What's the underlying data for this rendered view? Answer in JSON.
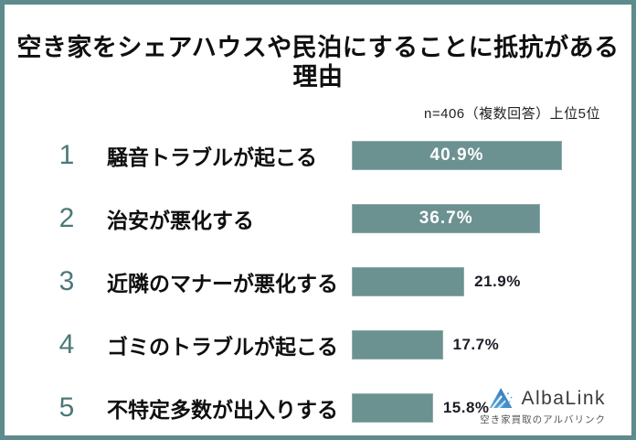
{
  "frame": {
    "border_color": "#5e8c8c",
    "background": "#ffffff"
  },
  "header": {
    "title": "空き家をシェアハウスや民泊にすることに抵抗がある理由",
    "note": "n=406（複数回答）上位5位"
  },
  "chart_data": {
    "type": "bar",
    "orientation": "horizontal",
    "title": "空き家をシェアハウスや民泊にすることに抵抗がある理由",
    "subtitle": "n=406（複数回答）上位5位",
    "sample_size": 406,
    "categories": [
      "騒音トラブルが起こる",
      "治安が悪化する",
      "近隣のマナーが悪化する",
      "ゴミのトラブルが起こる",
      "不特定多数が出入りする"
    ],
    "values": [
      40.9,
      36.7,
      21.9,
      17.7,
      15.8
    ],
    "value_labels": [
      "40.9%",
      "36.7%",
      "21.9%",
      "17.7%",
      "15.8%"
    ],
    "ranks": [
      "1",
      "2",
      "3",
      "4",
      "5"
    ],
    "value_label_position": [
      "inside",
      "inside",
      "outside",
      "outside",
      "outside"
    ],
    "bar_color": "#6b9191",
    "rank_color": "#4c7878",
    "xlim": [
      0,
      45
    ],
    "grid": false,
    "legend": false,
    "xlabel": "",
    "ylabel": ""
  },
  "rows": [
    {
      "rank": "1",
      "label": "騒音トラブルが起こる",
      "value": 40.9,
      "value_label": "40.9%",
      "value_position": "inside"
    },
    {
      "rank": "2",
      "label": "治安が悪化する",
      "value": 36.7,
      "value_label": "36.7%",
      "value_position": "inside"
    },
    {
      "rank": "3",
      "label": "近隣のマナーが悪化する",
      "value": 21.9,
      "value_label": "21.9%",
      "value_position": "outside"
    },
    {
      "rank": "4",
      "label": "ゴミのトラブルが起こる",
      "value": 17.7,
      "value_label": "17.7%",
      "value_position": "outside"
    },
    {
      "rank": "5",
      "label": "不特定多数が出入りする",
      "value": 15.8,
      "value_label": "15.8%",
      "value_position": "outside"
    }
  ],
  "footer": {
    "logo_name": "AlbaLink",
    "logo_subtext": "空き家買取のアルバリンク",
    "logo_icon": "albalink-triangle-icon",
    "logo_blue_dark": "#2e6fb5",
    "logo_blue_light": "#58a8dc"
  }
}
